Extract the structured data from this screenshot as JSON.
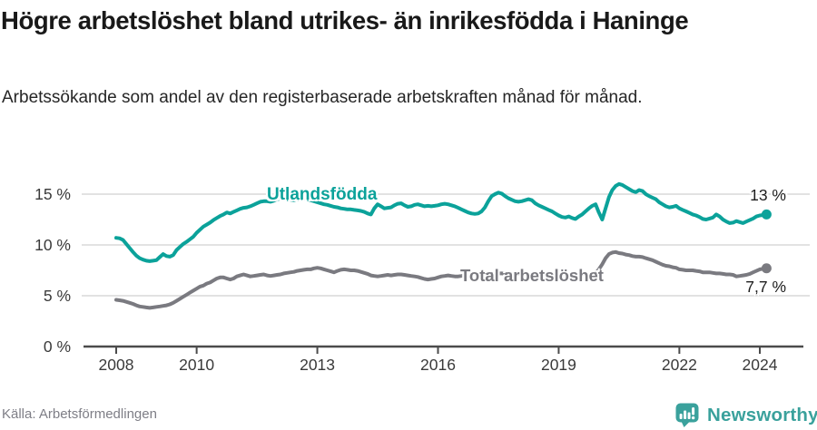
{
  "header": {
    "title": "Högre arbetslöshet bland utrikes- än inrikesfödda i Haninge",
    "subtitle": "Arbetssökande som andel av den registerbaserade arbetskraften månad för månad."
  },
  "footer": {
    "source": "Källa: Arbetsförmedlingen",
    "brand": "Newsworthy"
  },
  "colors": {
    "series_foreign": "#0ba29a",
    "series_total": "#7a7a80",
    "grid": "#d8d8d8",
    "axis": "#4b4b4b",
    "brand_teal": "#3aa19c"
  },
  "chart_data": {
    "type": "line",
    "title": "Högre arbetslöshet bland utrikes- än inrikesfödda i Haninge",
    "subtitle": "Arbetssökande som andel av den registerbaserade arbetskraften månad för månad.",
    "x_axis": {
      "ticks": [
        2008,
        2010,
        2013,
        2016,
        2019,
        2022,
        2024
      ],
      "range": [
        2008,
        2024.4
      ],
      "grid": false
    },
    "y_axis": {
      "ticks": [
        0,
        5,
        10,
        15
      ],
      "tick_suffix": " %",
      "range": [
        0,
        16.8
      ],
      "grid": true
    },
    "legend_position": "inline-labels",
    "x_start_year": 2008,
    "x_step_years": 0.0833333,
    "series": [
      {
        "name": "Utlandsfödda",
        "color": "#0ba29a",
        "end_label": "13 %",
        "values": [
          10.7,
          10.65,
          10.5,
          10.1,
          9.7,
          9.3,
          8.95,
          8.7,
          8.55,
          8.45,
          8.4,
          8.45,
          8.5,
          8.8,
          9.1,
          8.9,
          8.85,
          9.0,
          9.5,
          9.8,
          10.1,
          10.3,
          10.55,
          10.8,
          11.2,
          11.5,
          11.8,
          12.0,
          12.2,
          12.45,
          12.65,
          12.85,
          13.0,
          13.2,
          13.1,
          13.25,
          13.4,
          13.55,
          13.65,
          13.7,
          13.8,
          13.95,
          14.1,
          14.25,
          14.3,
          14.3,
          14.25,
          14.35,
          14.5,
          14.55,
          14.6,
          14.5,
          14.45,
          14.4,
          14.5,
          14.6,
          14.55,
          14.5,
          14.4,
          14.3,
          14.2,
          14.1,
          14.0,
          13.95,
          13.85,
          13.75,
          13.7,
          13.6,
          13.55,
          13.5,
          13.5,
          13.45,
          13.4,
          13.35,
          13.25,
          13.1,
          13.0,
          13.6,
          14.0,
          13.8,
          13.6,
          13.65,
          13.7,
          13.9,
          14.05,
          14.1,
          13.9,
          13.75,
          13.8,
          13.95,
          14.0,
          13.9,
          13.8,
          13.85,
          13.8,
          13.85,
          13.9,
          14.0,
          14.05,
          14.0,
          13.9,
          13.8,
          13.65,
          13.5,
          13.35,
          13.2,
          13.1,
          13.05,
          13.1,
          13.3,
          13.7,
          14.3,
          14.8,
          15.0,
          15.15,
          15.05,
          14.8,
          14.6,
          14.45,
          14.3,
          14.25,
          14.3,
          14.4,
          14.5,
          14.4,
          14.1,
          13.9,
          13.75,
          13.6,
          13.45,
          13.3,
          13.1,
          12.9,
          12.75,
          12.7,
          12.8,
          12.65,
          12.55,
          12.8,
          13.0,
          13.3,
          13.6,
          13.85,
          14.0,
          13.2,
          12.5,
          13.6,
          14.7,
          15.4,
          15.8,
          16.0,
          15.9,
          15.7,
          15.5,
          15.3,
          15.2,
          15.4,
          15.3,
          15.0,
          14.8,
          14.65,
          14.5,
          14.2,
          14.0,
          13.8,
          13.7,
          13.75,
          13.85,
          13.6,
          13.45,
          13.3,
          13.15,
          13.0,
          12.9,
          12.75,
          12.55,
          12.5,
          12.6,
          12.7,
          13.0,
          12.8,
          12.5,
          12.3,
          12.15,
          12.2,
          12.35,
          12.25,
          12.15,
          12.3,
          12.45,
          12.6,
          12.8,
          12.9,
          12.95,
          13.0
        ]
      },
      {
        "name": "Total arbetslöshet",
        "color": "#7a7a80",
        "end_label": "7,7 %",
        "values": [
          4.6,
          4.55,
          4.5,
          4.4,
          4.3,
          4.2,
          4.05,
          3.95,
          3.9,
          3.85,
          3.8,
          3.85,
          3.9,
          3.95,
          4.0,
          4.05,
          4.15,
          4.3,
          4.5,
          4.7,
          4.9,
          5.1,
          5.3,
          5.5,
          5.7,
          5.9,
          6.0,
          6.2,
          6.3,
          6.5,
          6.7,
          6.8,
          6.8,
          6.7,
          6.6,
          6.7,
          6.9,
          7.0,
          7.1,
          7.0,
          6.9,
          6.95,
          7.0,
          7.05,
          7.1,
          7.0,
          6.95,
          7.0,
          7.05,
          7.1,
          7.2,
          7.25,
          7.3,
          7.35,
          7.45,
          7.5,
          7.55,
          7.6,
          7.6,
          7.7,
          7.75,
          7.7,
          7.6,
          7.5,
          7.4,
          7.3,
          7.45,
          7.55,
          7.6,
          7.55,
          7.5,
          7.5,
          7.45,
          7.35,
          7.25,
          7.15,
          7.0,
          6.95,
          6.9,
          6.95,
          7.0,
          7.05,
          7.0,
          7.05,
          7.1,
          7.1,
          7.05,
          7.0,
          6.95,
          6.9,
          6.85,
          6.75,
          6.65,
          6.6,
          6.65,
          6.7,
          6.8,
          6.9,
          6.95,
          7.0,
          6.95,
          6.9,
          6.9,
          6.95,
          7.0,
          7.0,
          7.0,
          7.05,
          7.05,
          7.1,
          7.1,
          7.1,
          7.15,
          7.15,
          7.2,
          7.2,
          7.15,
          7.1,
          7.1,
          7.1,
          7.1,
          7.1,
          7.05,
          7.0,
          7.0,
          7.0,
          7.0,
          6.95,
          6.9,
          6.9,
          6.9,
          6.9,
          6.9,
          6.85,
          6.8,
          6.8,
          6.85,
          6.9,
          6.9,
          6.95,
          7.0,
          7.0,
          7.1,
          7.2,
          7.6,
          8.1,
          8.7,
          9.1,
          9.25,
          9.3,
          9.2,
          9.15,
          9.05,
          9.0,
          8.9,
          8.85,
          8.85,
          8.8,
          8.7,
          8.6,
          8.5,
          8.35,
          8.2,
          8.05,
          7.95,
          7.9,
          7.8,
          7.75,
          7.6,
          7.55,
          7.5,
          7.5,
          7.5,
          7.45,
          7.4,
          7.3,
          7.3,
          7.3,
          7.25,
          7.2,
          7.2,
          7.15,
          7.1,
          7.1,
          7.05,
          6.9,
          6.95,
          7.0,
          7.05,
          7.15,
          7.3,
          7.45,
          7.6,
          7.65,
          7.7
        ]
      }
    ]
  }
}
